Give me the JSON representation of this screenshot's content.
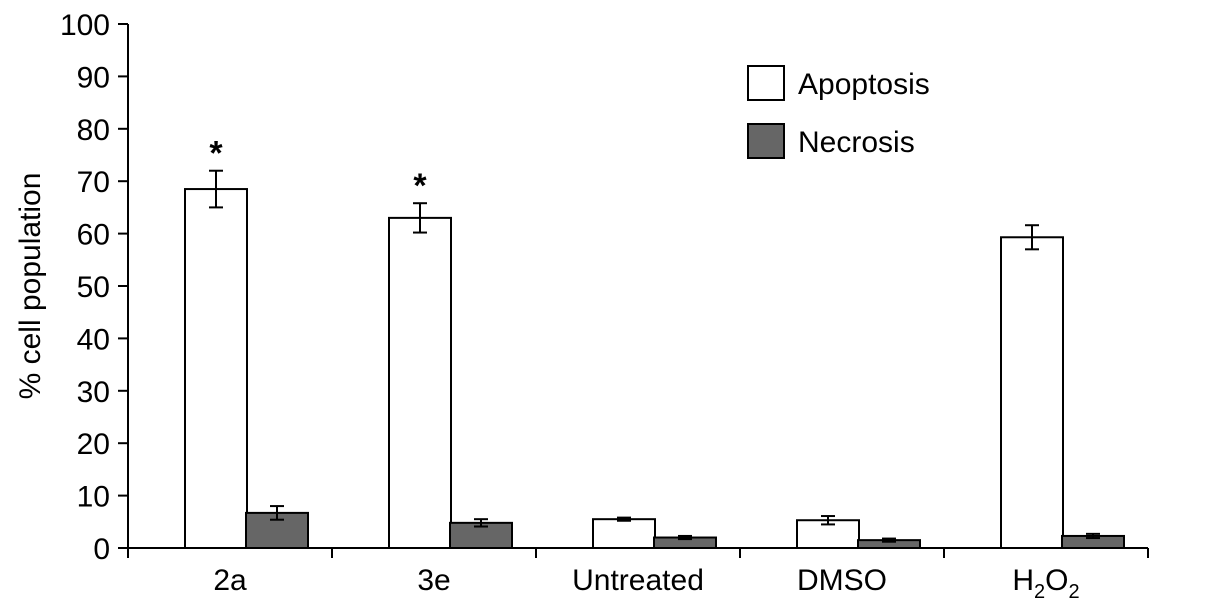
{
  "chart_data": {
    "type": "bar",
    "ylabel": "% cell population",
    "xlabel": "",
    "ylim": [
      0,
      100
    ],
    "yticks": [
      0,
      10,
      20,
      30,
      40,
      50,
      60,
      70,
      80,
      90,
      100
    ],
    "categories": [
      {
        "base": "2a",
        "sub": ""
      },
      {
        "base": "3e",
        "sub": ""
      },
      {
        "base": "Untreated",
        "sub": ""
      },
      {
        "base": "DMSO",
        "sub": ""
      },
      {
        "base": "H",
        "sub": "2",
        "rest": "O",
        "sub2": "2"
      }
    ],
    "series": [
      {
        "name": "Apoptosis",
        "color": "#ffffff",
        "values": [
          68.5,
          63.0,
          5.5,
          5.3,
          59.3
        ],
        "errors": [
          3.5,
          2.8,
          0.3,
          0.8,
          2.3
        ]
      },
      {
        "name": "Necrosis",
        "color": "#666666",
        "values": [
          6.7,
          4.8,
          2.0,
          1.5,
          2.3
        ],
        "errors": [
          1.3,
          0.7,
          0.3,
          0.3,
          0.4
        ]
      }
    ],
    "annotations": [
      {
        "text": "*",
        "category_index": 0,
        "series_index": 0
      },
      {
        "text": "*",
        "category_index": 1,
        "series_index": 0
      }
    ],
    "legend": {
      "placement": "top-right"
    },
    "grid": false
  }
}
